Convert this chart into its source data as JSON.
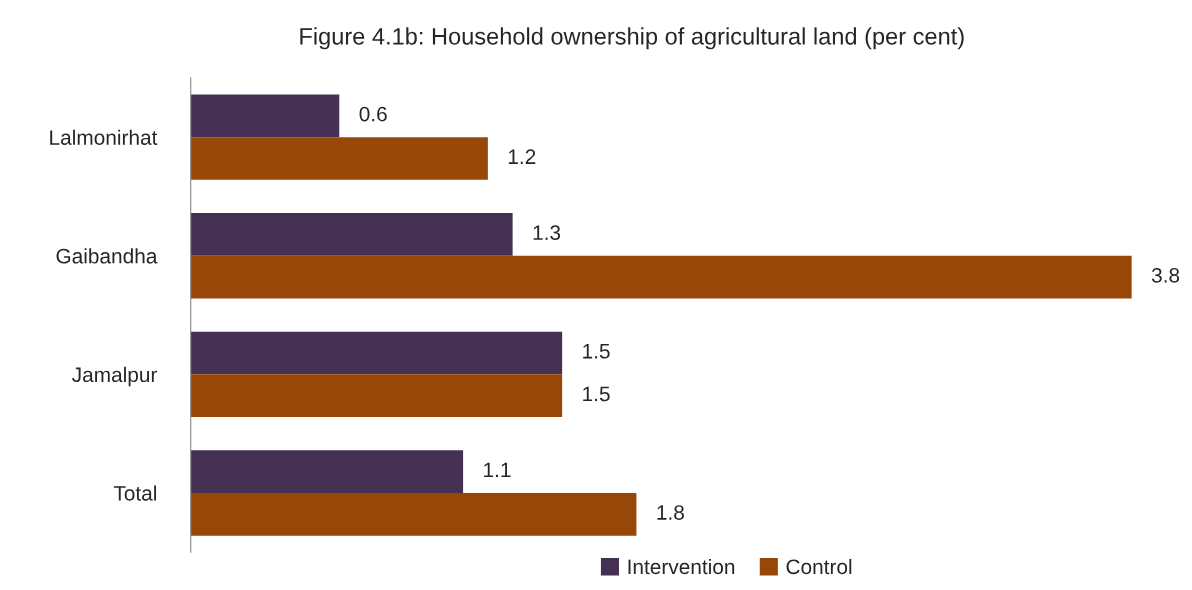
{
  "chart_data": {
    "type": "bar",
    "orientation": "horizontal",
    "title": "Figure 4.1b: Household ownership of agricultural land (per cent)",
    "categories": [
      "Lalmonirhat",
      "Gaibandha",
      "Jamalpur",
      "Total"
    ],
    "series": [
      {
        "name": "Intervention",
        "color": "#433052",
        "values": [
          0.6,
          1.3,
          1.5,
          1.1
        ]
      },
      {
        "name": "Control",
        "color": "#974708",
        "values": [
          1.2,
          3.8,
          1.5,
          1.8
        ]
      }
    ],
    "data_labels": true,
    "legend": "bottom",
    "grid": false
  }
}
